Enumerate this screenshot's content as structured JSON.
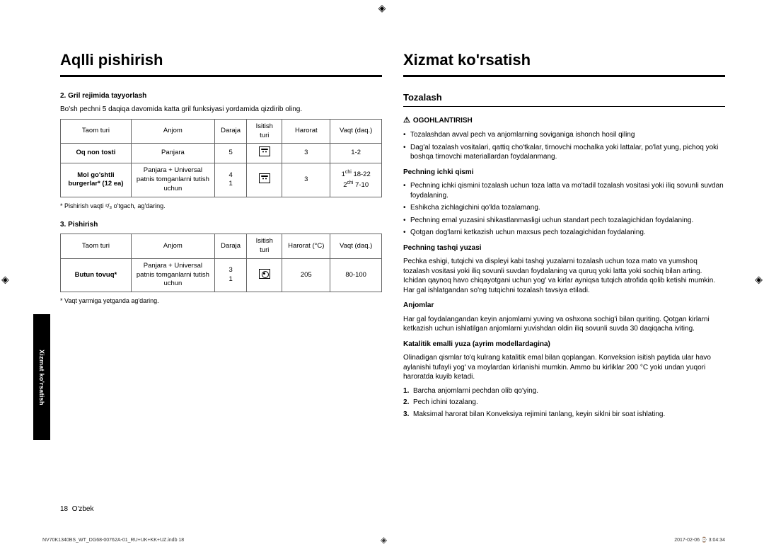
{
  "sideTab": "Xizmat ko'rsatish",
  "left": {
    "title": "Aqlli pishirish",
    "section2": {
      "heading": "2. Gril rejimida tayyorlash",
      "intro": "Bo'sh pechni 5 daqiqa davomida katta gril funksiyasi yordamida qizdirib oling.",
      "headers": {
        "food": "Taom turi",
        "acc": "Anjom",
        "level": "Daraja",
        "heat": "Isitish turi",
        "temp": "Harorat",
        "time": "Vaqt (daq.)"
      },
      "rows": [
        {
          "food": "Oq non tosti",
          "acc": "Panjara",
          "level": "5",
          "temp": "3",
          "time": "1-2"
        },
        {
          "food": "Mol go'shtli burgerlar* (12 ea)",
          "acc": "Panjara + Universal patnis tomganlarni tutish uchun",
          "level": "4\n1",
          "temp": "3",
          "time1": "18-22",
          "time2": "7-10"
        }
      ],
      "note": "* Pishirish vaqti ²/₃ o'tgach, ag'daring."
    },
    "section3": {
      "heading": "3. Pishirish",
      "headers": {
        "food": "Taom turi",
        "acc": "Anjom",
        "level": "Daraja",
        "heat": "Isitish turi",
        "temp": "Harorat (°C)",
        "time": "Vaqt (daq.)"
      },
      "rows": [
        {
          "food": "Butun tovuq*",
          "acc": "Panjara + Universal patnis tomganlarni tutish uchun",
          "level": "3\n1",
          "temp": "205",
          "time": "80-100"
        }
      ],
      "note": "* Vaqt yarmiga yetganda ag'daring."
    }
  },
  "right": {
    "title": "Xizmat ko'rsatish",
    "sub": "Tozalash",
    "warning": {
      "label": "OGOHLANTIRISH",
      "items": [
        "Tozalashdan avval pech va anjomlarning soviganiga ishonch hosil qiling",
        "Dag'al tozalash vositalari, qattiq cho'tkalar, tirnovchi mochalka yoki lattalar, po'lat yung, pichoq yoki boshqa tirnovchi materiallardan foydalanmang."
      ]
    },
    "inner": {
      "heading": "Pechning ichki qismi",
      "items": [
        "Pechning ichki qismini tozalash uchun toza latta va mo'tadil tozalash vositasi yoki iliq sovunli suvdan foydalaning.",
        "Eshikcha zichlagichini qo'lda tozalamang.",
        "Pechning emal yuzasini shikastlanmasligi uchun standart pech tozalagichidan foydalaning.",
        "Qotgan dog'larni ketkazish uchun maxsus pech tozalagichidan foydalaning."
      ]
    },
    "outer": {
      "heading": "Pechning tashqi yuzasi",
      "text": "Pechka eshigi, tutqichi va displeyi kabi tashqi yuzalarni tozalash uchun toza mato va yumshoq tozalash vositasi yoki iliq sovunli suvdan foydalaning va quruq yoki latta yoki sochiq bilan arting. Ichidan qaynoq havo chiqayotgani uchun yog' va kirlar ayniqsa tutqich atrofida qolib ketishi mumkin. Har gal ishlatgandan so'ng tutqichni tozalash tavsiya etiladi."
    },
    "acc": {
      "heading": "Anjomlar",
      "text": "Har gal foydalangandan keyin anjomlarni yuving va oshxona sochig'i bilan quriting. Qotgan kirlarni ketkazish uchun ishlatilgan anjomlarni yuvishdan oldin iliq sovunli suvda 30 daqiqacha iviting."
    },
    "catalytic": {
      "heading": "Katalitik emalli yuza (ayrim modellardagina)",
      "text": "Olinadigan qismlar to'q kulrang katalitik emal bilan qoplangan. Konveksion isitish paytida ular havo aylanishi tufayli yog' va moylardan kirlanishi mumkin. Ammo bu kirliklar 200 °C yoki undan yuqori haroratda kuyib ketadi.",
      "steps": [
        "Barcha anjomlarni pechdan olib qo'ying.",
        "Pech ichini tozalang.",
        "Maksimal harorat bilan Konveksiya rejimini tanlang, keyin siklni bir soat ishlating."
      ]
    }
  },
  "pageNum": "18",
  "lang": "O'zbek",
  "footer": {
    "left": "NV70K1340BS_WT_DG68-00762A-01_RU+UK+KK+UZ.indb   18",
    "right": "2017-02-06   ⌚ 3:04:34"
  }
}
